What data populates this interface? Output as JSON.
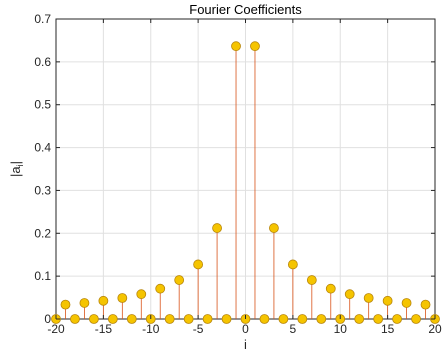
{
  "chart_data": {
    "type": "stem",
    "title": "Fourier Coefficients",
    "xlabel": "i",
    "ylabel_main": "|a",
    "ylabel_sub": "i",
    "ylabel_close": "|",
    "xlim": [
      -20,
      20
    ],
    "ylim": [
      0,
      0.7
    ],
    "xticks": [
      -20,
      -15,
      -10,
      -5,
      0,
      5,
      10,
      15,
      20
    ],
    "yticks": [
      0,
      0.1,
      0.2,
      0.3,
      0.4,
      0.5,
      0.6,
      0.7
    ],
    "grid": true,
    "x": [
      -20,
      -19,
      -18,
      -17,
      -16,
      -15,
      -14,
      -13,
      -12,
      -11,
      -10,
      -9,
      -8,
      -7,
      -6,
      -5,
      -4,
      -3,
      -2,
      -1,
      0,
      1,
      2,
      3,
      4,
      5,
      6,
      7,
      8,
      9,
      10,
      11,
      12,
      13,
      14,
      15,
      16,
      17,
      18,
      19,
      20
    ],
    "values": [
      0,
      0.0335,
      0,
      0.0374,
      0,
      0.0424,
      0,
      0.049,
      0,
      0.0579,
      0,
      0.0707,
      0,
      0.0909,
      0,
      0.1273,
      0,
      0.2122,
      0,
      0.6366,
      0,
      0.6366,
      0,
      0.2122,
      0,
      0.1273,
      0,
      0.0909,
      0,
      0.0707,
      0,
      0.0579,
      0,
      0.049,
      0,
      0.0424,
      0,
      0.0374,
      0,
      0.0335,
      0
    ],
    "stem_color": "#d95319",
    "marker_fill": "#f5c400",
    "marker_edge": "#b8860b",
    "grid_color": "#e0e0e0"
  }
}
